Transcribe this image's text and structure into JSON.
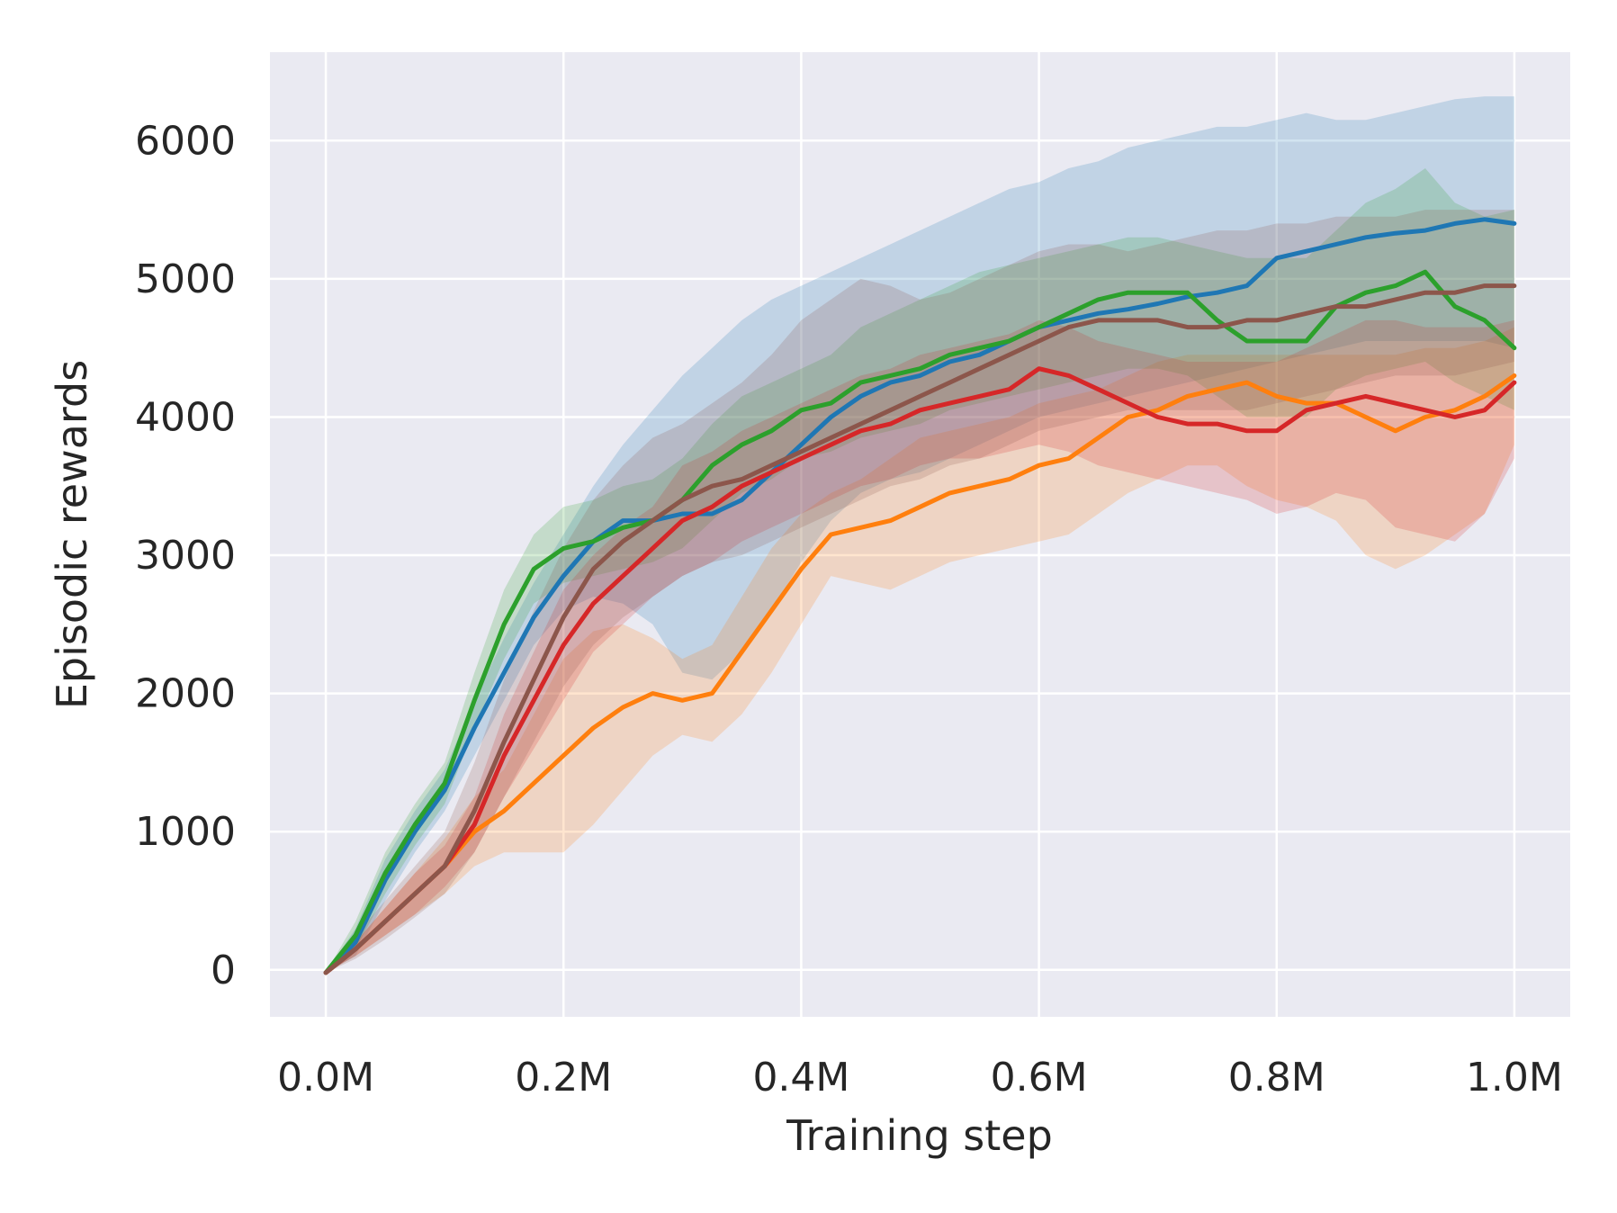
{
  "chart_data": {
    "type": "line",
    "title": "",
    "xlabel": "Training step",
    "ylabel": "Episodic rewards",
    "xlim": [
      -0.047,
      1.047
    ],
    "ylim": [
      -340,
      6640
    ],
    "xticks": [
      0.0,
      0.2,
      0.4,
      0.6,
      0.8,
      1.0
    ],
    "xtick_labels": [
      "0.0M",
      "0.2M",
      "0.4M",
      "0.6M",
      "0.8M",
      "1.0M"
    ],
    "yticks": [
      0,
      1000,
      2000,
      3000,
      4000,
      5000,
      6000
    ],
    "ytick_labels": [
      "0",
      "1000",
      "2000",
      "3000",
      "4000",
      "5000",
      "6000"
    ],
    "grid": true,
    "legend": "none",
    "x": [
      0.0,
      0.025,
      0.05,
      0.075,
      0.1,
      0.125,
      0.15,
      0.175,
      0.2,
      0.225,
      0.25,
      0.275,
      0.3,
      0.325,
      0.35,
      0.375,
      0.4,
      0.425,
      0.45,
      0.475,
      0.5,
      0.525,
      0.55,
      0.575,
      0.6,
      0.625,
      0.65,
      0.675,
      0.7,
      0.725,
      0.75,
      0.775,
      0.8,
      0.825,
      0.85,
      0.875,
      0.9,
      0.925,
      0.95,
      0.975,
      1.0
    ],
    "series": [
      {
        "name": "blue",
        "color": "#1f77b4",
        "values": [
          -20,
          200,
          650,
          1000,
          1300,
          1750,
          2150,
          2550,
          2850,
          3100,
          3250,
          3250,
          3300,
          3300,
          3400,
          3600,
          3800,
          4000,
          4150,
          4250,
          4300,
          4400,
          4450,
          4550,
          4650,
          4700,
          4750,
          4780,
          4820,
          4870,
          4900,
          4950,
          5150,
          5200,
          5250,
          5300,
          5330,
          5350,
          5400,
          5430,
          5400
        ],
        "lower": [
          -20,
          100,
          500,
          850,
          1150,
          1550,
          1950,
          2350,
          2600,
          2700,
          2650,
          2500,
          2150,
          2100,
          2300,
          2600,
          2950,
          3250,
          3450,
          3550,
          3600,
          3700,
          3800,
          3900,
          4000,
          4050,
          4100,
          4150,
          4200,
          4250,
          4300,
          4350,
          4400,
          4450,
          4500,
          4550,
          4550,
          4550,
          4550,
          4550,
          4500
        ],
        "upper": [
          -20,
          300,
          800,
          1150,
          1450,
          1950,
          2400,
          2800,
          3150,
          3500,
          3800,
          4050,
          4300,
          4500,
          4700,
          4850,
          4950,
          5050,
          5150,
          5250,
          5350,
          5450,
          5550,
          5650,
          5700,
          5800,
          5850,
          5950,
          6000,
          6050,
          6100,
          6100,
          6150,
          6200,
          6150,
          6150,
          6200,
          6250,
          6300,
          6320,
          6320
        ]
      },
      {
        "name": "orange",
        "color": "#ff7f0e",
        "values": [
          -20,
          150,
          350,
          550,
          750,
          1000,
          1150,
          1350,
          1550,
          1750,
          1900,
          2000,
          1950,
          2000,
          2300,
          2600,
          2900,
          3150,
          3200,
          3250,
          3350,
          3450,
          3500,
          3550,
          3650,
          3700,
          3850,
          4000,
          4050,
          4150,
          4200,
          4250,
          4150,
          4100,
          4100,
          4000,
          3900,
          4000,
          4050,
          4150,
          4300
        ],
        "lower": [
          -20,
          100,
          250,
          400,
          550,
          750,
          850,
          850,
          850,
          1050,
          1300,
          1550,
          1700,
          1650,
          1850,
          2150,
          2500,
          2850,
          2800,
          2750,
          2850,
          2950,
          3000,
          3050,
          3100,
          3150,
          3300,
          3450,
          3550,
          3650,
          3650,
          3500,
          3400,
          3350,
          3250,
          3000,
          2900,
          3000,
          3150,
          3300,
          3800
        ],
        "upper": [
          -20,
          200,
          450,
          700,
          950,
          1250,
          1450,
          1850,
          2250,
          2450,
          2500,
          2400,
          2250,
          2350,
          2700,
          3050,
          3300,
          3450,
          3550,
          3700,
          3850,
          3900,
          3950,
          4000,
          4100,
          4150,
          4200,
          4300,
          4400,
          4450,
          4450,
          4450,
          4450,
          4450,
          4450,
          4450,
          4450,
          4500,
          4500,
          4550,
          4650
        ]
      },
      {
        "name": "green",
        "color": "#2ca02c",
        "values": [
          -20,
          250,
          700,
          1050,
          1350,
          1950,
          2500,
          2900,
          3050,
          3100,
          3200,
          3250,
          3400,
          3650,
          3800,
          3900,
          4050,
          4100,
          4250,
          4300,
          4350,
          4450,
          4500,
          4550,
          4650,
          4750,
          4850,
          4900,
          4900,
          4900,
          4700,
          4550,
          4550,
          4550,
          4800,
          4900,
          4950,
          5050,
          4800,
          4700,
          4500
        ],
        "lower": [
          -20,
          150,
          550,
          900,
          1200,
          1750,
          2250,
          2650,
          2800,
          2850,
          2900,
          2950,
          3050,
          3250,
          3450,
          3550,
          3700,
          3750,
          3850,
          3900,
          3950,
          4050,
          4100,
          4150,
          4200,
          4250,
          4300,
          4350,
          4350,
          4300,
          4150,
          4000,
          4000,
          4000,
          4200,
          4300,
          4350,
          4400,
          4250,
          4150,
          4050
        ],
        "upper": [
          -20,
          350,
          850,
          1200,
          1500,
          2150,
          2750,
          3150,
          3350,
          3400,
          3500,
          3550,
          3700,
          3950,
          4150,
          4250,
          4350,
          4450,
          4650,
          4750,
          4850,
          4950,
          5050,
          5100,
          5150,
          5200,
          5250,
          5300,
          5300,
          5250,
          5200,
          5150,
          5150,
          5150,
          5350,
          5550,
          5650,
          5800,
          5550,
          5450,
          5500
        ]
      },
      {
        "name": "red",
        "color": "#d62728",
        "values": [
          -20,
          150,
          350,
          550,
          750,
          1050,
          1550,
          1950,
          2350,
          2650,
          2850,
          3050,
          3250,
          3350,
          3500,
          3600,
          3700,
          3800,
          3900,
          3950,
          4050,
          4100,
          4150,
          4200,
          4350,
          4300,
          4200,
          4100,
          4000,
          3950,
          3950,
          3900,
          3900,
          4050,
          4100,
          4150,
          4100,
          4050,
          4000,
          4050,
          4250
        ],
        "lower": [
          -20,
          100,
          250,
          400,
          600,
          850,
          1250,
          1600,
          1950,
          2300,
          2500,
          2700,
          2850,
          2950,
          3100,
          3200,
          3300,
          3400,
          3500,
          3550,
          3650,
          3700,
          3700,
          3750,
          3800,
          3750,
          3650,
          3600,
          3550,
          3500,
          3450,
          3400,
          3300,
          3350,
          3450,
          3400,
          3200,
          3150,
          3100,
          3300,
          3700
        ],
        "upper": [
          -20,
          200,
          450,
          700,
          900,
          1250,
          1850,
          2300,
          2750,
          3000,
          3200,
          3350,
          3650,
          3750,
          3900,
          4000,
          4100,
          4200,
          4300,
          4350,
          4450,
          4500,
          4550,
          4600,
          4700,
          4650,
          4550,
          4500,
          4450,
          4400,
          4400,
          4400,
          4400,
          4500,
          4600,
          4700,
          4700,
          4650,
          4650,
          4650,
          4700
        ]
      },
      {
        "name": "brown",
        "color": "#8c564b",
        "values": [
          -20,
          150,
          350,
          550,
          750,
          1150,
          1650,
          2100,
          2550,
          2900,
          3100,
          3250,
          3400,
          3500,
          3550,
          3650,
          3750,
          3850,
          3950,
          4050,
          4150,
          4250,
          4350,
          4450,
          4550,
          4650,
          4700,
          4700,
          4700,
          4650,
          4650,
          4700,
          4700,
          4750,
          4800,
          4800,
          4850,
          4900,
          4900,
          4950,
          4950
        ],
        "lower": [
          -20,
          80,
          220,
          380,
          550,
          850,
          1250,
          1650,
          2050,
          2350,
          2550,
          2700,
          2850,
          2950,
          3000,
          3100,
          3200,
          3300,
          3400,
          3500,
          3550,
          3650,
          3700,
          3800,
          3900,
          3950,
          4000,
          4050,
          4050,
          4050,
          4050,
          4050,
          4100,
          4150,
          4200,
          4250,
          4300,
          4300,
          4300,
          4350,
          4400
        ],
        "upper": [
          -20,
          250,
          500,
          750,
          1000,
          1500,
          2100,
          2600,
          3050,
          3400,
          3650,
          3850,
          3950,
          4100,
          4250,
          4450,
          4700,
          4850,
          5000,
          4950,
          4850,
          4900,
          5000,
          5100,
          5200,
          5250,
          5250,
          5200,
          5250,
          5300,
          5350,
          5350,
          5400,
          5400,
          5450,
          5450,
          5450,
          5500,
          5500,
          5500,
          5500
        ]
      }
    ]
  }
}
